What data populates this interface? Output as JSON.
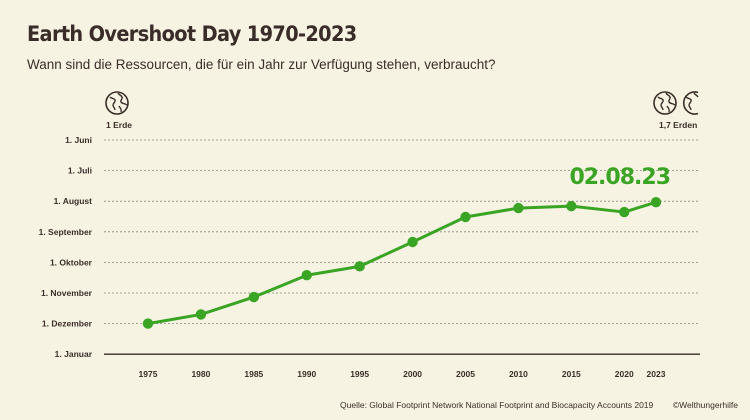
{
  "header": {
    "title": "Earth Overshoot Day 1970-2023",
    "subtitle": "Wann sind die Ressourcen, die für ein Jahr zur Verfügung stehen, verbraucht?"
  },
  "left_marker": {
    "label": "1 Erde",
    "icon": "globe-icon"
  },
  "right_marker": {
    "label": "1,7 Erden",
    "icon": "globe-icon"
  },
  "footer": {
    "source": "Quelle: Global Footprint Network National Footprint and Biocapacity Accounts 2019",
    "copyright": "©Welthungerhilfe"
  },
  "colors": {
    "background": "#f7f3e3",
    "line": "#3aa524",
    "text": "#3a2d29",
    "grid": "#8c8580"
  },
  "chart_data": {
    "type": "line",
    "title": "Earth Overshoot Day 1970-2023",
    "y_categories": [
      "1. Juni",
      "1. Juli",
      "1. August",
      "1. September",
      "1. Oktober",
      "1. November",
      "1. Dezember",
      "1. Januar"
    ],
    "x_ticks": [
      "1975",
      "1980",
      "1985",
      "1990",
      "1995",
      "2000",
      "2005",
      "2010",
      "2015",
      "2020",
      "2023"
    ],
    "series": [
      {
        "name": "",
        "x": [
          1975,
          1980,
          1985,
          1990,
          1995,
          2000,
          2005,
          2010,
          2015,
          2020,
          2023
        ],
        "dates": [
          "1975-12-01",
          "1980-11-22",
          "1985-11-05",
          "1990-10-14",
          "1995-10-05",
          "2000-09-11",
          "2005-08-17",
          "2010-08-08",
          "2015-08-06",
          "2020-08-12",
          "2023-08-02"
        ]
      }
    ],
    "annotation": "02.08.23",
    "grid": true
  }
}
